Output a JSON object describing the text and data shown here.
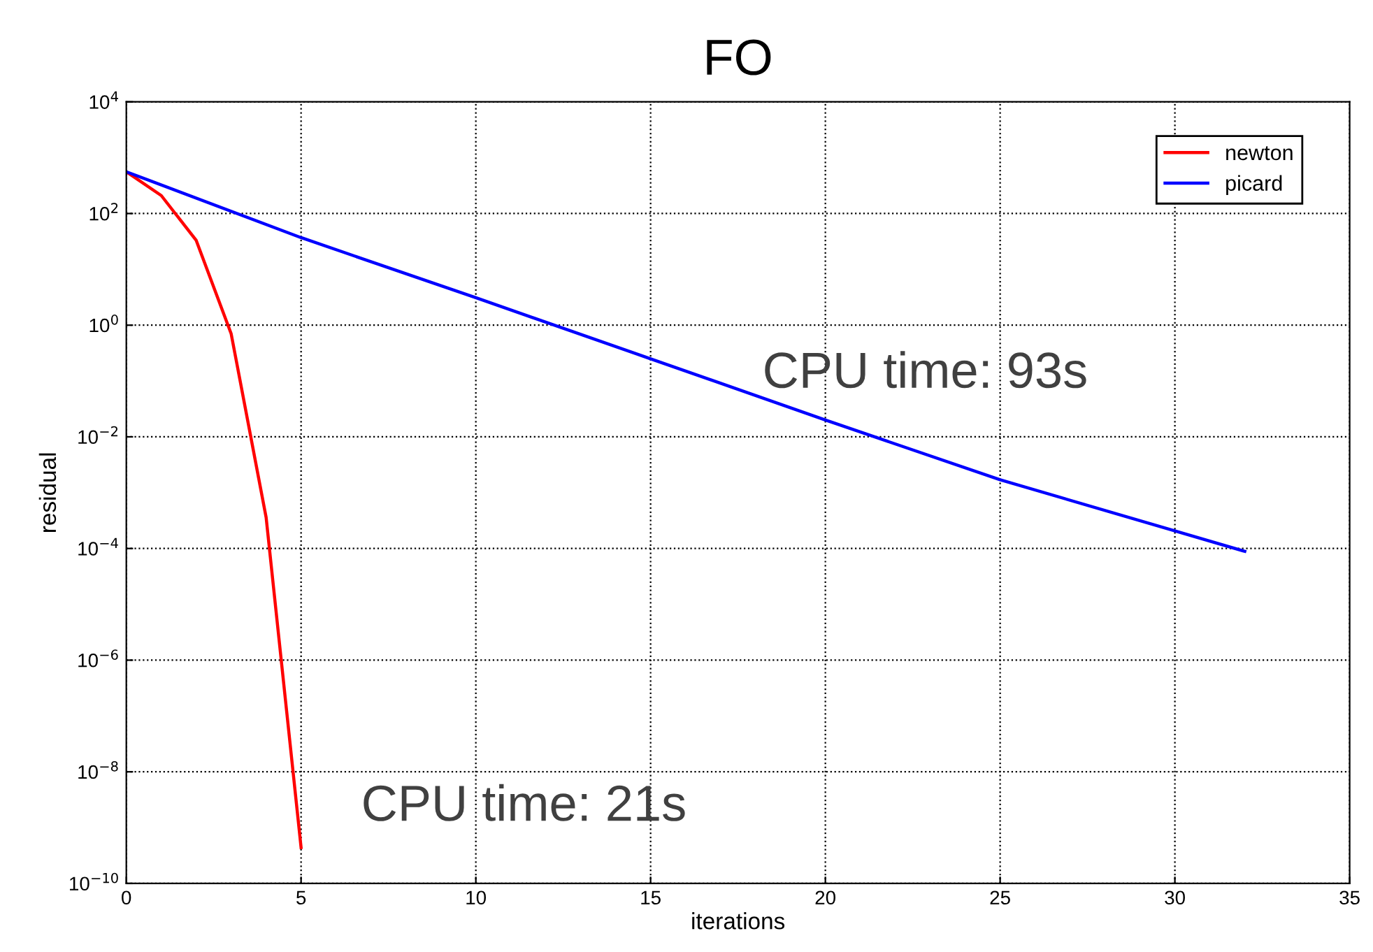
{
  "chart_data": {
    "type": "line",
    "title": "FO",
    "xlabel": "iterations",
    "ylabel": "residual",
    "log": "y",
    "xlim": [
      0,
      35
    ],
    "ylim": [
      1e-10,
      10000.0
    ],
    "xticks": [
      0,
      5,
      10,
      15,
      20,
      25,
      30,
      35
    ],
    "yticks": [
      {
        "value": 1e-10,
        "label": "10$^{−10}$"
      },
      {
        "value": 1e-08,
        "label": "10$^{−8}$"
      },
      {
        "value": 1e-06,
        "label": "10$^{−6}$"
      },
      {
        "value": 0.0001,
        "label": "10$^{−4}$"
      },
      {
        "value": 0.01,
        "label": "10$^{−2}$"
      },
      {
        "value": 1,
        "label": "10$^{0}$"
      },
      {
        "value": 100,
        "label": "10$^{2}$"
      },
      {
        "value": 10000,
        "label": "10$^{4}$"
      }
    ],
    "grid": true,
    "legend": "top right",
    "line_style": "solid",
    "marker": "none",
    "series": [
      {
        "name": "newton",
        "color": "#ff0000",
        "x": [
          0,
          1,
          2,
          3,
          4,
          5
        ],
        "values": [
          560,
          210,
          33,
          0.7,
          0.00036,
          4.4e-10
        ]
      },
      {
        "name": "picard",
        "color": "#0000ff",
        "x": [
          0,
          5,
          10,
          15,
          20,
          25,
          32
        ],
        "values": [
          560,
          37,
          3.1,
          0.25,
          0.02,
          0.0017,
          8.9e-05
        ]
      }
    ],
    "annotations": [
      "CPU time: 93s",
      "CPU time: 21s"
    ]
  }
}
